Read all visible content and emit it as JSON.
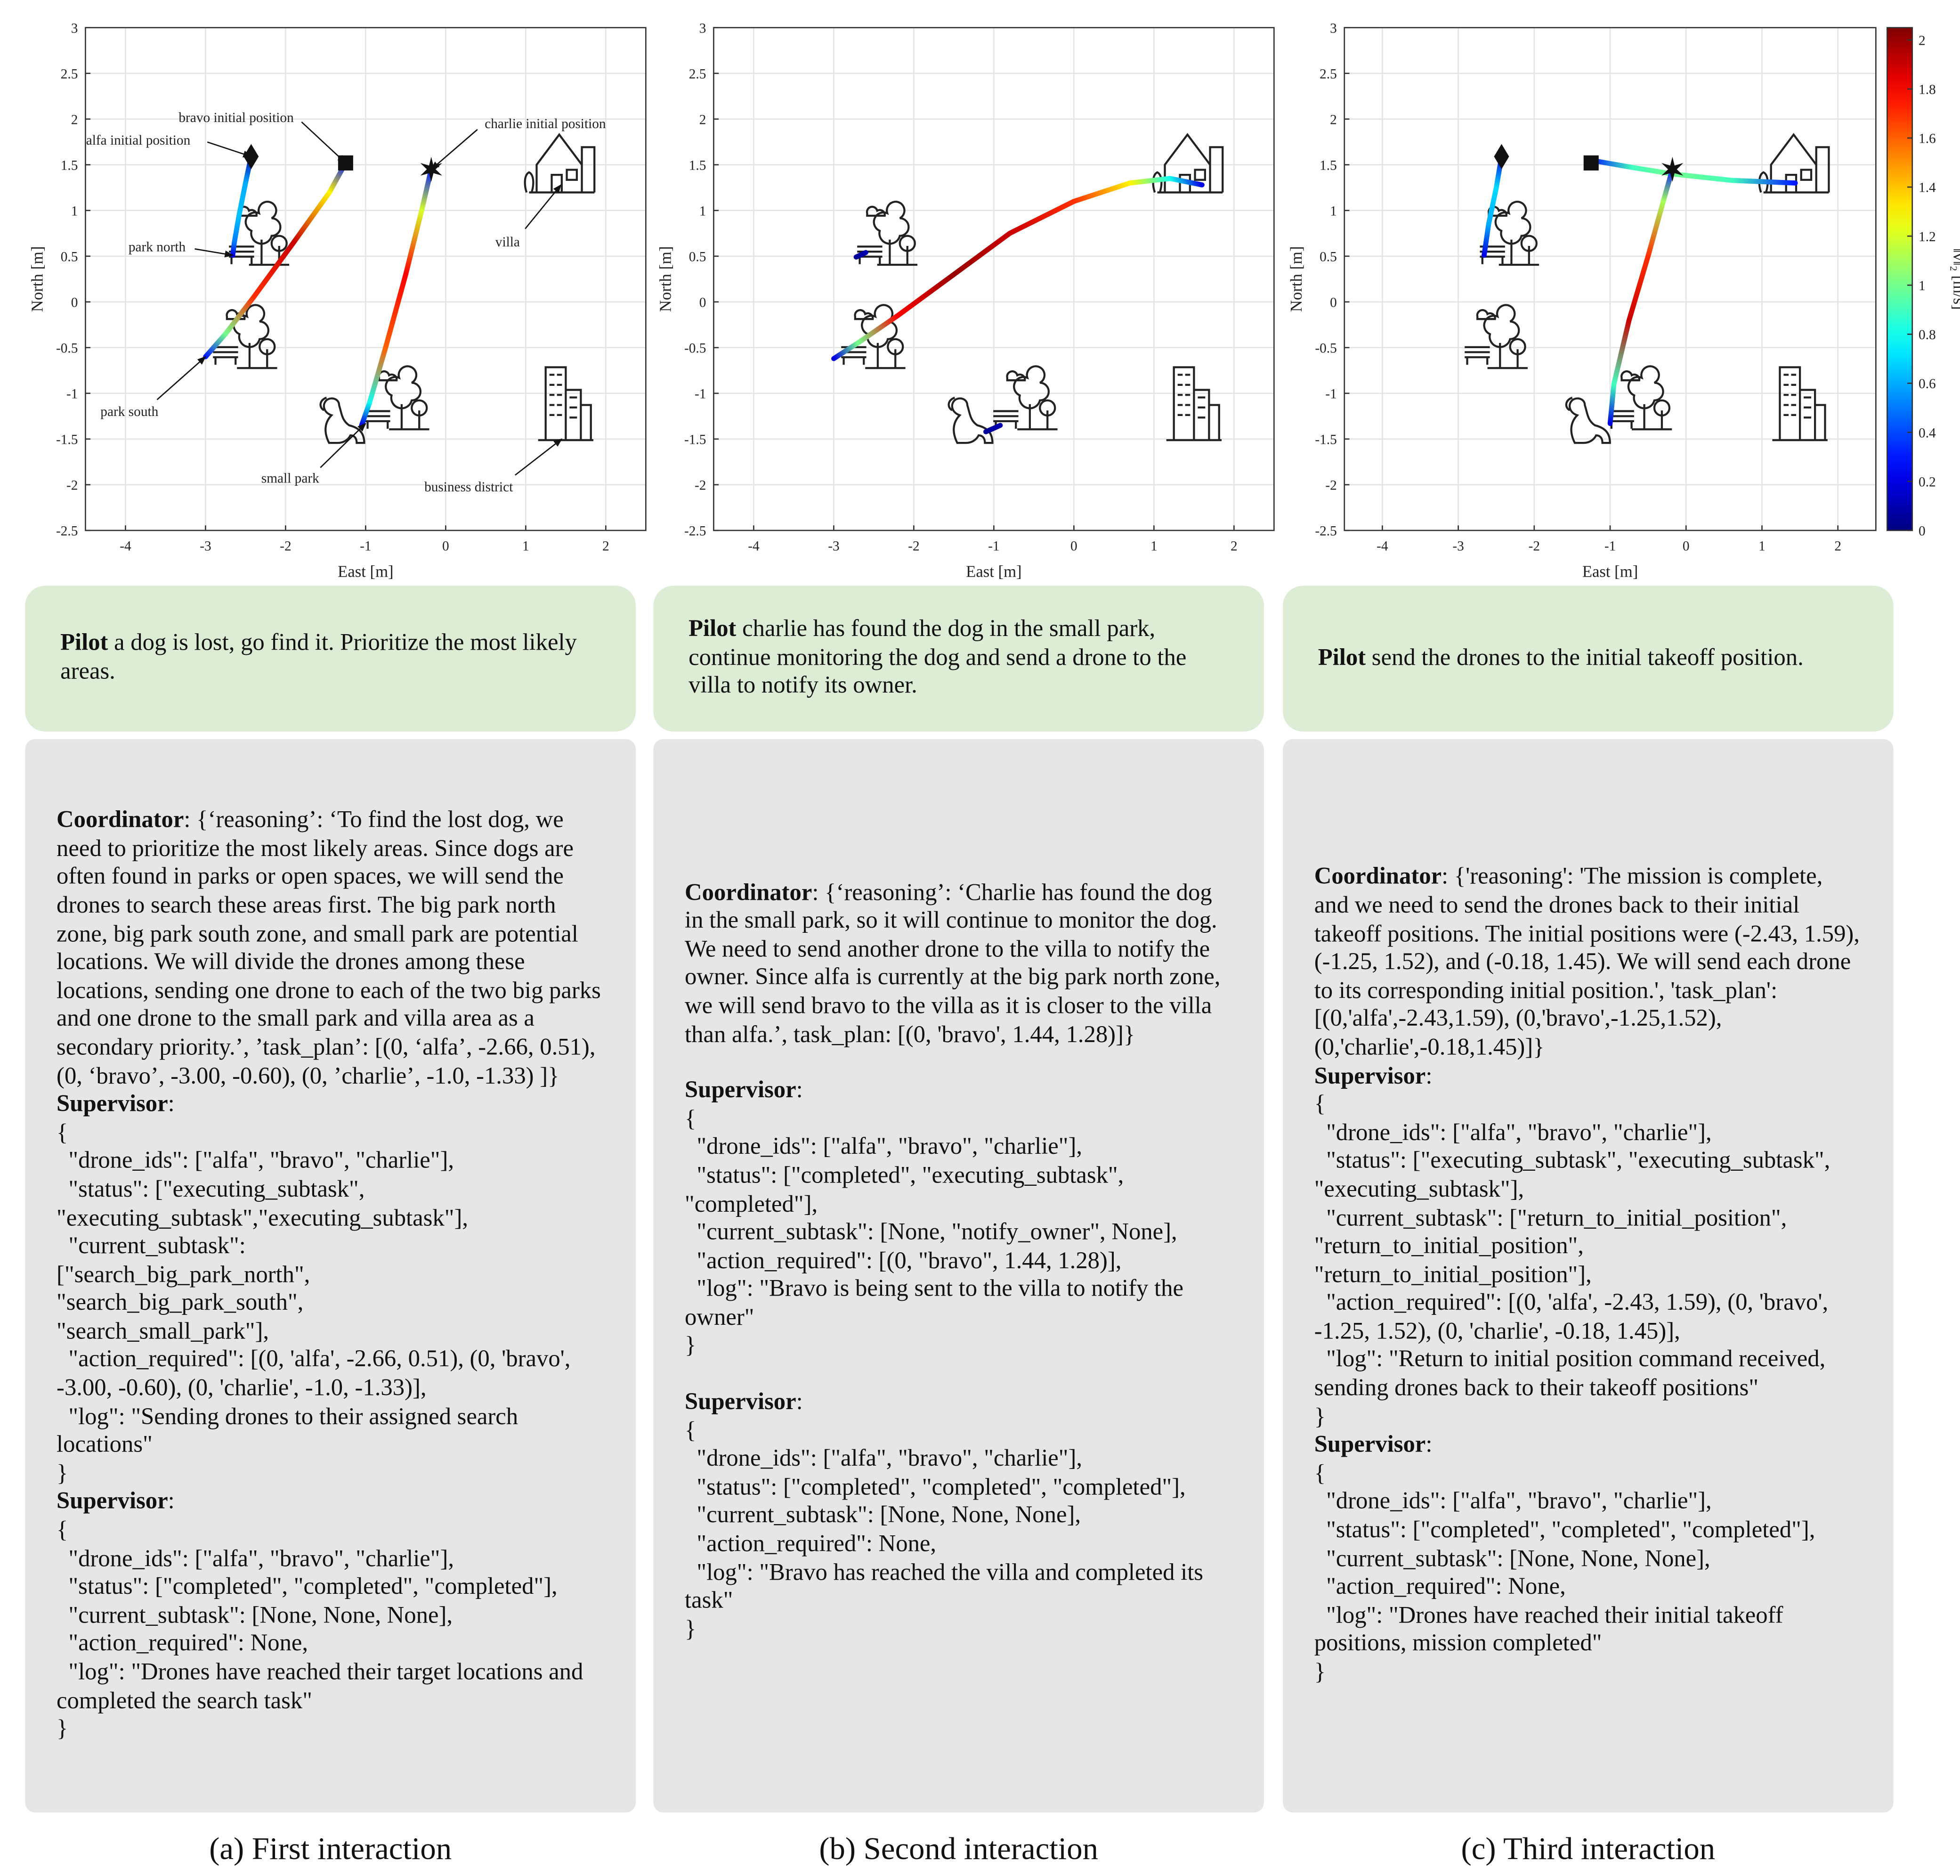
{
  "chart_data": [
    {
      "type": "line",
      "xlabel": "East [m]",
      "ylabel": "North [m]",
      "xlim": [
        -4.5,
        2.5
      ],
      "ylim": [
        -2.5,
        3
      ],
      "xticks": [
        -4,
        -3,
        -2,
        -1,
        0,
        1,
        2
      ],
      "yticks": [
        -2.5,
        -2,
        -1.5,
        -1,
        -0.5,
        0,
        0.5,
        1,
        1.5,
        2,
        2.5,
        3
      ],
      "grid": true,
      "series": [
        {
          "x": [
            -2.43,
            -2.5,
            -2.58,
            -2.64,
            -2.66
          ],
          "y": [
            1.59,
            1.3,
            0.95,
            0.65,
            0.51
          ],
          "speed": [
            0.1,
            0.6,
            0.65,
            0.5,
            0.2
          ]
        },
        {
          "x": [
            -1.25,
            -1.45,
            -1.9,
            -2.4,
            -2.75,
            -3.0
          ],
          "y": [
            1.52,
            1.2,
            0.65,
            0.05,
            -0.35,
            -0.6
          ],
          "speed": [
            0.3,
            1.3,
            1.9,
            1.7,
            1.0,
            0.3
          ]
        },
        {
          "x": [
            -0.18,
            -0.3,
            -0.5,
            -0.75,
            -0.95,
            -1.05
          ],
          "y": [
            1.45,
            1.0,
            0.3,
            -0.5,
            -1.1,
            -1.35
          ],
          "speed": [
            0.3,
            1.2,
            1.8,
            1.6,
            0.8,
            0.2
          ]
        }
      ],
      "markers": [
        {
          "x": -2.43,
          "y": 1.59,
          "shape": "diamond"
        },
        {
          "x": -1.25,
          "y": 1.52,
          "shape": "square"
        },
        {
          "x": -0.18,
          "y": 1.45,
          "shape": "star"
        }
      ],
      "annotations": [
        {
          "text": "alfa initial position",
          "x": -2.43,
          "y": 1.59
        },
        {
          "text": "bravo initial position",
          "x": -1.25,
          "y": 1.52
        },
        {
          "text": "charlie initial position",
          "x": -0.18,
          "y": 1.45
        },
        {
          "text": "villa",
          "x": 1.44,
          "y": 1.28
        },
        {
          "text": "park north",
          "x": -2.66,
          "y": 0.51
        },
        {
          "text": "park south",
          "x": -3.0,
          "y": -0.6
        },
        {
          "text": "small park",
          "x": -1.0,
          "y": -1.33
        },
        {
          "text": "business district",
          "x": 1.45,
          "y": -1.5
        }
      ]
    },
    {
      "type": "line",
      "xlabel": "East [m]",
      "ylabel": "North [m]",
      "xlim": [
        -4.5,
        2.5
      ],
      "ylim": [
        -2.5,
        3
      ],
      "xticks": [
        -4,
        -3,
        -2,
        -1,
        0,
        1,
        2
      ],
      "yticks": [
        -2.5,
        -2,
        -1.5,
        -1,
        -0.5,
        0,
        0.5,
        1,
        1.5,
        2,
        2.5,
        3
      ],
      "grid": true,
      "series": [
        {
          "x": [
            -2.72,
            -2.6
          ],
          "y": [
            0.49,
            0.54
          ],
          "speed": [
            0.05,
            0.1
          ]
        },
        {
          "x": [
            -3.0,
            -2.7,
            -2.2,
            -1.5,
            -0.8,
            0,
            0.7,
            1.2,
            1.6
          ],
          "y": [
            -0.62,
            -0.45,
            -0.15,
            0.3,
            0.75,
            1.1,
            1.3,
            1.35,
            1.28
          ],
          "speed": [
            0.2,
            1.0,
            1.8,
            2.0,
            1.9,
            1.7,
            1.3,
            0.8,
            0.2
          ]
        },
        {
          "x": [
            -1.1,
            -0.92
          ],
          "y": [
            -1.42,
            -1.35
          ],
          "speed": [
            0.05,
            0.1
          ]
        }
      ]
    },
    {
      "type": "line",
      "xlabel": "East [m]",
      "ylabel": "North [m]",
      "xlim": [
        -4.5,
        2.5
      ],
      "ylim": [
        -2.5,
        3
      ],
      "xticks": [
        -4,
        -3,
        -2,
        -1,
        0,
        1,
        2
      ],
      "yticks": [
        -2.5,
        -2,
        -1.5,
        -1,
        -0.5,
        0,
        0.5,
        1,
        1.5,
        2,
        2.5,
        3
      ],
      "grid": true,
      "series": [
        {
          "x": [
            -2.66,
            -2.6,
            -2.5,
            -2.43
          ],
          "y": [
            0.51,
            0.85,
            1.25,
            1.59
          ],
          "speed": [
            0.2,
            0.6,
            0.7,
            0.2
          ]
        },
        {
          "x": [
            1.44,
            0.6,
            -0.18,
            -0.7,
            -1.25
          ],
          "y": [
            1.3,
            1.33,
            1.4,
            1.47,
            1.55
          ],
          "speed": [
            0.3,
            0.9,
            1.0,
            0.9,
            0.3
          ]
        },
        {
          "x": [
            -1.0,
            -0.95,
            -0.75,
            -0.5,
            -0.3,
            -0.18
          ],
          "y": [
            -1.33,
            -0.9,
            -0.2,
            0.5,
            1.1,
            1.45
          ],
          "speed": [
            0.2,
            0.9,
            1.9,
            1.7,
            1.1,
            0.3
          ]
        }
      ],
      "markers": [
        {
          "x": -2.43,
          "y": 1.59,
          "shape": "diamond"
        },
        {
          "x": -1.25,
          "y": 1.52,
          "shape": "square"
        },
        {
          "x": -0.18,
          "y": 1.45,
          "shape": "star"
        }
      ],
      "colorbar": {
        "label": "‖v‖₂ [m/s]",
        "lim": [
          0,
          2.05
        ],
        "ticks": [
          0,
          0.2,
          0.4,
          0.6,
          0.8,
          1,
          1.2,
          1.4,
          1.6,
          1.8,
          2
        ]
      }
    }
  ],
  "panels": [
    {
      "pilot": {
        "speaker": "Pilot",
        "text": "a dog is lost, go find it. Prioritize the most likely areas."
      },
      "log": [
        {
          "speaker": "Coordinator",
          "text": ": {‘reasoning’: ‘To find the lost dog, we need to prioritize the most likely areas. Since dogs are often found in parks or open spaces, we will send the drones to search these areas first. The big park north zone, big park south zone, and small park are potential locations. We will divide the drones among these locations, sending one drone to each of the two big parks and one drone to the small park and villa area as a secondary priority.’, ’task_plan’: [(0, ‘alfa’, -2.66, 0.51), (0, ‘bravo’, -3.00, -0.60), (0, ’charlie’, -1.0, -1.33) ]}"
        },
        {
          "speaker": "Supervisor",
          "text": ":\n{\n  \"drone_ids\": [\"alfa\", \"bravo\", \"charlie\"],\n  \"status\": [\"executing_subtask\", \"executing_subtask\",\"executing_subtask\"],\n  \"current_subtask\":\n[\"search_big_park_north\",\n\"search_big_park_south\",\n\"search_small_park\"],\n  \"action_required\": [(0, 'alfa', -2.66, 0.51), (0, 'bravo', -3.00, -0.60), (0, 'charlie', -1.0, -1.33)],\n  \"log\": \"Sending drones to their assigned search locations\"\n}"
        },
        {
          "speaker": "Supervisor",
          "text": ":\n{\n  \"drone_ids\": [\"alfa\", \"bravo\", \"charlie\"],\n  \"status\": [\"completed\", \"completed\", \"completed\"],\n  \"current_subtask\": [None, None, None],\n  \"action_required\": None,\n  \"log\": \"Drones have reached their target locations and completed the search task\"\n}"
        }
      ],
      "caption": "(a) First interaction"
    },
    {
      "pilot": {
        "speaker": "Pilot",
        "text": "charlie has found the dog in the small park, continue monitoring the dog and send a drone to the villa to notify its owner."
      },
      "log": [
        {
          "speaker": "Coordinator",
          "text": ": {‘reasoning’: ‘Charlie has found the dog in the small park, so it will continue to monitor the dog. We need to send another drone to the villa to notify the owner. Since alfa is currently at the big park north zone, we will send bravo to the villa as it is closer to the villa than alfa.’, task_plan: [(0, 'bravo', 1.44, 1.28)]}"
        },
        {
          "speaker": "Supervisor",
          "text": ":\n{\n  \"drone_ids\": [\"alfa\", \"bravo\", \"charlie\"],\n  \"status\": [\"completed\", \"executing_subtask\", \"completed\"],\n  \"current_subtask\": [None, \"notify_owner\", None],\n  \"action_required\": [(0, \"bravo\", 1.44, 1.28)],\n  \"log\": \"Bravo is being sent to the villa to notify the owner\"\n}"
        },
        {
          "speaker": "Supervisor",
          "text": ":\n{\n  \"drone_ids\": [\"alfa\", \"bravo\", \"charlie\"],\n  \"status\": [\"completed\", \"completed\", \"completed\"],\n  \"current_subtask\": [None, None, None],\n  \"action_required\": None,\n  \"log\": \"Bravo has reached the villa and completed its task\"\n}"
        }
      ],
      "caption": "(b) Second interaction"
    },
    {
      "pilot": {
        "speaker": "Pilot",
        "text": "send the drones to the initial takeoff position."
      },
      "log": [
        {
          "speaker": "Coordinator",
          "text": ": {'reasoning': 'The mission is complete, and we need to send the drones back to their initial takeoff positions. The initial positions were (-2.43, 1.59), (-1.25, 1.52), and (-0.18, 1.45). We will send each drone to its corresponding initial position.', 'task_plan':[(0,'alfa',-2.43,1.59), (0,'bravo',-1.25,1.52), (0,'charlie',-0.18,1.45)]}"
        },
        {
          "speaker": "Supervisor",
          "text": ":\n{\n  \"drone_ids\": [\"alfa\", \"bravo\", \"charlie\"],\n  \"status\": [\"executing_subtask\", \"executing_subtask\", \"executing_subtask\"],\n  \"current_subtask\": [\"return_to_initial_position\", \"return_to_initial_position\", \"return_to_initial_position\"],\n  \"action_required\": [(0, 'alfa', -2.43, 1.59), (0, 'bravo', -1.25, 1.52), (0, 'charlie', -0.18, 1.45)],\n  \"log\": \"Return to initial position command received, sending drones back to their takeoff positions\"\n}"
        },
        {
          "speaker": "Supervisor",
          "text": ":\n{\n  \"drone_ids\": [\"alfa\", \"bravo\", \"charlie\"],\n  \"status\": [\"completed\", \"completed\", \"completed\"],\n  \"current_subtask\": [None, None, None],\n  \"action_required\": None,\n  \"log\": \"Drones have reached their initial takeoff positions, mission completed\"\n}"
        }
      ],
      "caption": "(c) Third interaction"
    }
  ]
}
